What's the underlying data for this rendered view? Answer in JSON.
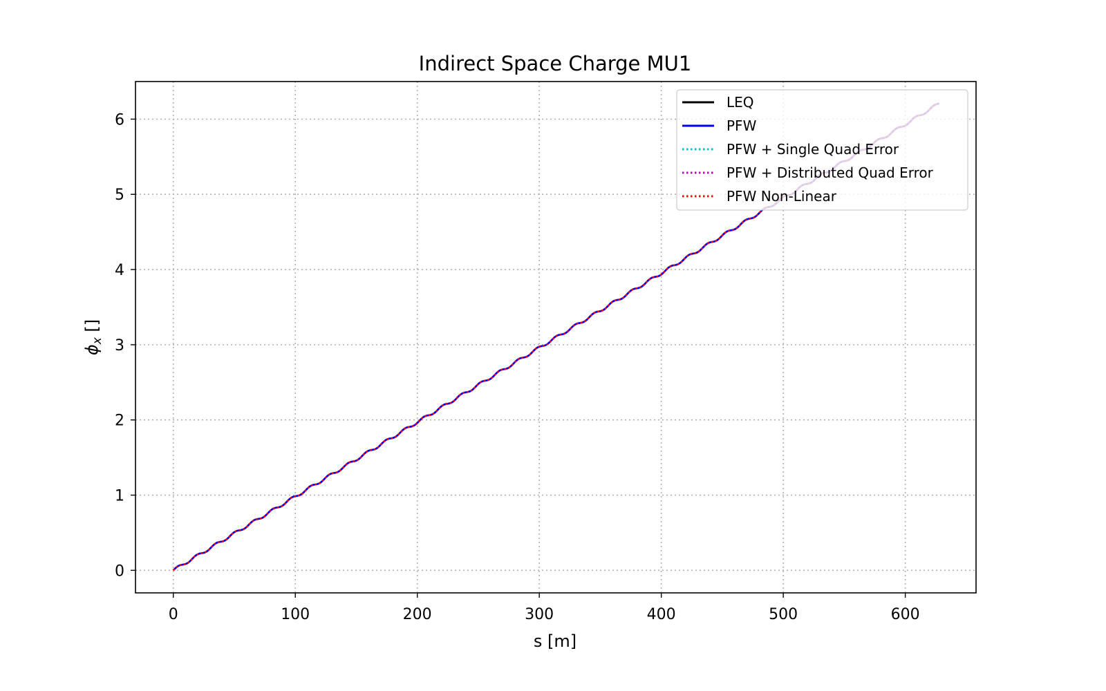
{
  "chart_data": {
    "type": "line",
    "title": "Indirect Space Charge MU1",
    "xlabel": "s [m]",
    "ylabel_symbol": "ϕ",
    "ylabel_subscript": "x",
    "ylabel_unit": " []",
    "xlim": [
      -31,
      658
    ],
    "ylim": [
      -0.3,
      6.5
    ],
    "xticks": [
      0,
      100,
      200,
      300,
      400,
      500,
      600
    ],
    "yticks": [
      0,
      1,
      2,
      3,
      4,
      5,
      6
    ],
    "grid": true,
    "legend_position": "top-right",
    "ripple": {
      "period_m": 15.5,
      "amplitude": 0.018
    },
    "series": [
      {
        "name": "LEQ",
        "color": "#000000",
        "style": "solid",
        "x": [
          0,
          100,
          200,
          300,
          400,
          500,
          600,
          628
        ],
        "y": [
          0,
          0.98,
          1.97,
          2.96,
          3.95,
          4.95,
          5.93,
          6.21
        ]
      },
      {
        "name": "PFW",
        "color": "#0000ff",
        "style": "solid",
        "x": [
          0,
          100,
          200,
          300,
          400,
          500,
          600,
          628
        ],
        "y": [
          0,
          0.98,
          1.97,
          2.96,
          3.95,
          4.95,
          5.93,
          6.21
        ]
      },
      {
        "name": "PFW + Single Quad Error",
        "color": "#00bfbf",
        "style": "dotted",
        "x": [
          0,
          100,
          200,
          300,
          400,
          500,
          600,
          628
        ],
        "y": [
          0,
          0.98,
          1.97,
          2.96,
          3.95,
          4.95,
          5.93,
          6.21
        ]
      },
      {
        "name": "PFW + Distributed Quad Error",
        "color": "#bf00bf",
        "style": "dotted",
        "x": [
          0,
          100,
          200,
          300,
          400,
          500,
          600,
          628
        ],
        "y": [
          0,
          0.98,
          1.97,
          2.96,
          3.95,
          4.95,
          5.93,
          6.21
        ]
      },
      {
        "name": "PFW Non-Linear",
        "color": "#ff0000",
        "style": "dotted",
        "x": [
          0,
          100,
          200,
          300,
          400,
          500,
          600,
          628
        ],
        "y": [
          0,
          0.98,
          1.97,
          2.96,
          3.95,
          4.95,
          5.93,
          6.21
        ]
      }
    ]
  }
}
